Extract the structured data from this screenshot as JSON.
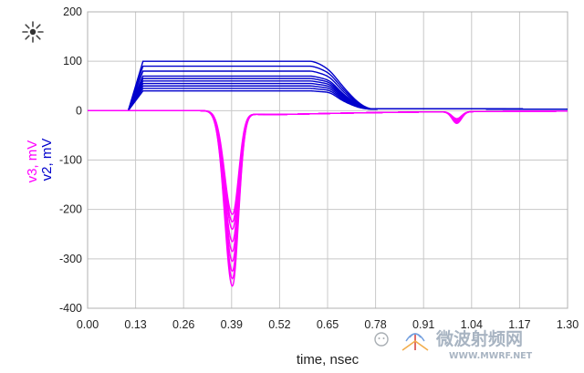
{
  "chart_data": {
    "type": "line",
    "xlabel": "time, nsec",
    "ylabel_parts": [
      {
        "text": "v3, mV",
        "color": "#ff00ff"
      },
      {
        "text": "v2, mV",
        "color": "#0000cc"
      }
    ],
    "x_ticks": [
      "0.00",
      "0.13",
      "0.26",
      "0.39",
      "0.52",
      "0.65",
      "0.78",
      "0.91",
      "1.04",
      "1.17",
      "1.30"
    ],
    "y_ticks": [
      200,
      100,
      0,
      -100,
      -200,
      -300,
      -400
    ],
    "xlim": [
      0,
      1.3
    ],
    "ylim": [
      -400,
      200
    ],
    "grid": true,
    "colors": {
      "v2": "#0000cc",
      "v3": "#ff00ff",
      "grid": "#c8c8c8",
      "frame": "#b0b0b0"
    },
    "series": [
      {
        "name": "v2",
        "group": "v2",
        "plateaus": [
          100,
          90,
          80,
          70,
          65,
          60,
          55,
          50,
          45,
          40
        ]
      },
      {
        "name": "v3",
        "group": "v3",
        "minima": [
          -355,
          -340,
          -325,
          -305,
          -285,
          -265,
          -240,
          -225,
          -210
        ]
      }
    ]
  },
  "logo": {
    "icon": "sunburst-logo-icon"
  },
  "watermark": {
    "cn": "微波射频网",
    "url": "WWW.MWRF.NET"
  }
}
